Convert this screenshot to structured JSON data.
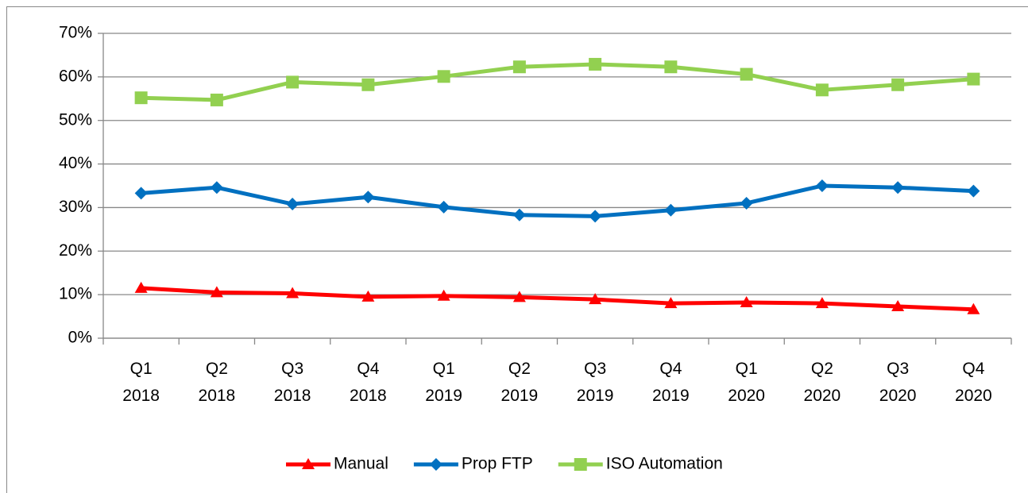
{
  "chart_data": {
    "type": "line",
    "categories": [
      [
        "Q1",
        "2018"
      ],
      [
        "Q2",
        "2018"
      ],
      [
        "Q3",
        "2018"
      ],
      [
        "Q4",
        "2018"
      ],
      [
        "Q1",
        "2019"
      ],
      [
        "Q2",
        "2019"
      ],
      [
        "Q3",
        "2019"
      ],
      [
        "Q4",
        "2019"
      ],
      [
        "Q1",
        "2020"
      ],
      [
        "Q2",
        "2020"
      ],
      [
        "Q3",
        "2020"
      ],
      [
        "Q4",
        "2020"
      ]
    ],
    "series": [
      {
        "name": "Manual",
        "color": "#ff0000",
        "marker": "triangle",
        "values": [
          11.5,
          10.5,
          10.3,
          9.5,
          9.7,
          9.4,
          8.9,
          8.0,
          8.2,
          8.0,
          7.3,
          6.6
        ]
      },
      {
        "name": "Prop FTP",
        "color": "#0070c0",
        "marker": "diamond",
        "values": [
          33.3,
          34.6,
          30.8,
          32.4,
          30.1,
          28.3,
          28.0,
          29.4,
          31.0,
          35.0,
          34.6,
          33.8
        ]
      },
      {
        "name": "ISO Automation",
        "color": "#92d050",
        "marker": "square",
        "values": [
          55.2,
          54.7,
          58.8,
          58.2,
          60.1,
          62.3,
          62.9,
          62.3,
          60.6,
          57.0,
          58.2,
          59.5
        ]
      }
    ],
    "ylim": [
      0,
      70
    ],
    "yticks": [
      {
        "value": 0,
        "label": "0%"
      },
      {
        "value": 10,
        "label": "10%"
      },
      {
        "value": 20,
        "label": "20%"
      },
      {
        "value": 30,
        "label": "30%"
      },
      {
        "value": 40,
        "label": "40%"
      },
      {
        "value": 50,
        "label": "50%"
      },
      {
        "value": 60,
        "label": "60%"
      },
      {
        "value": 70,
        "label": "70%"
      }
    ],
    "grid": true,
    "legend": "bottom"
  }
}
